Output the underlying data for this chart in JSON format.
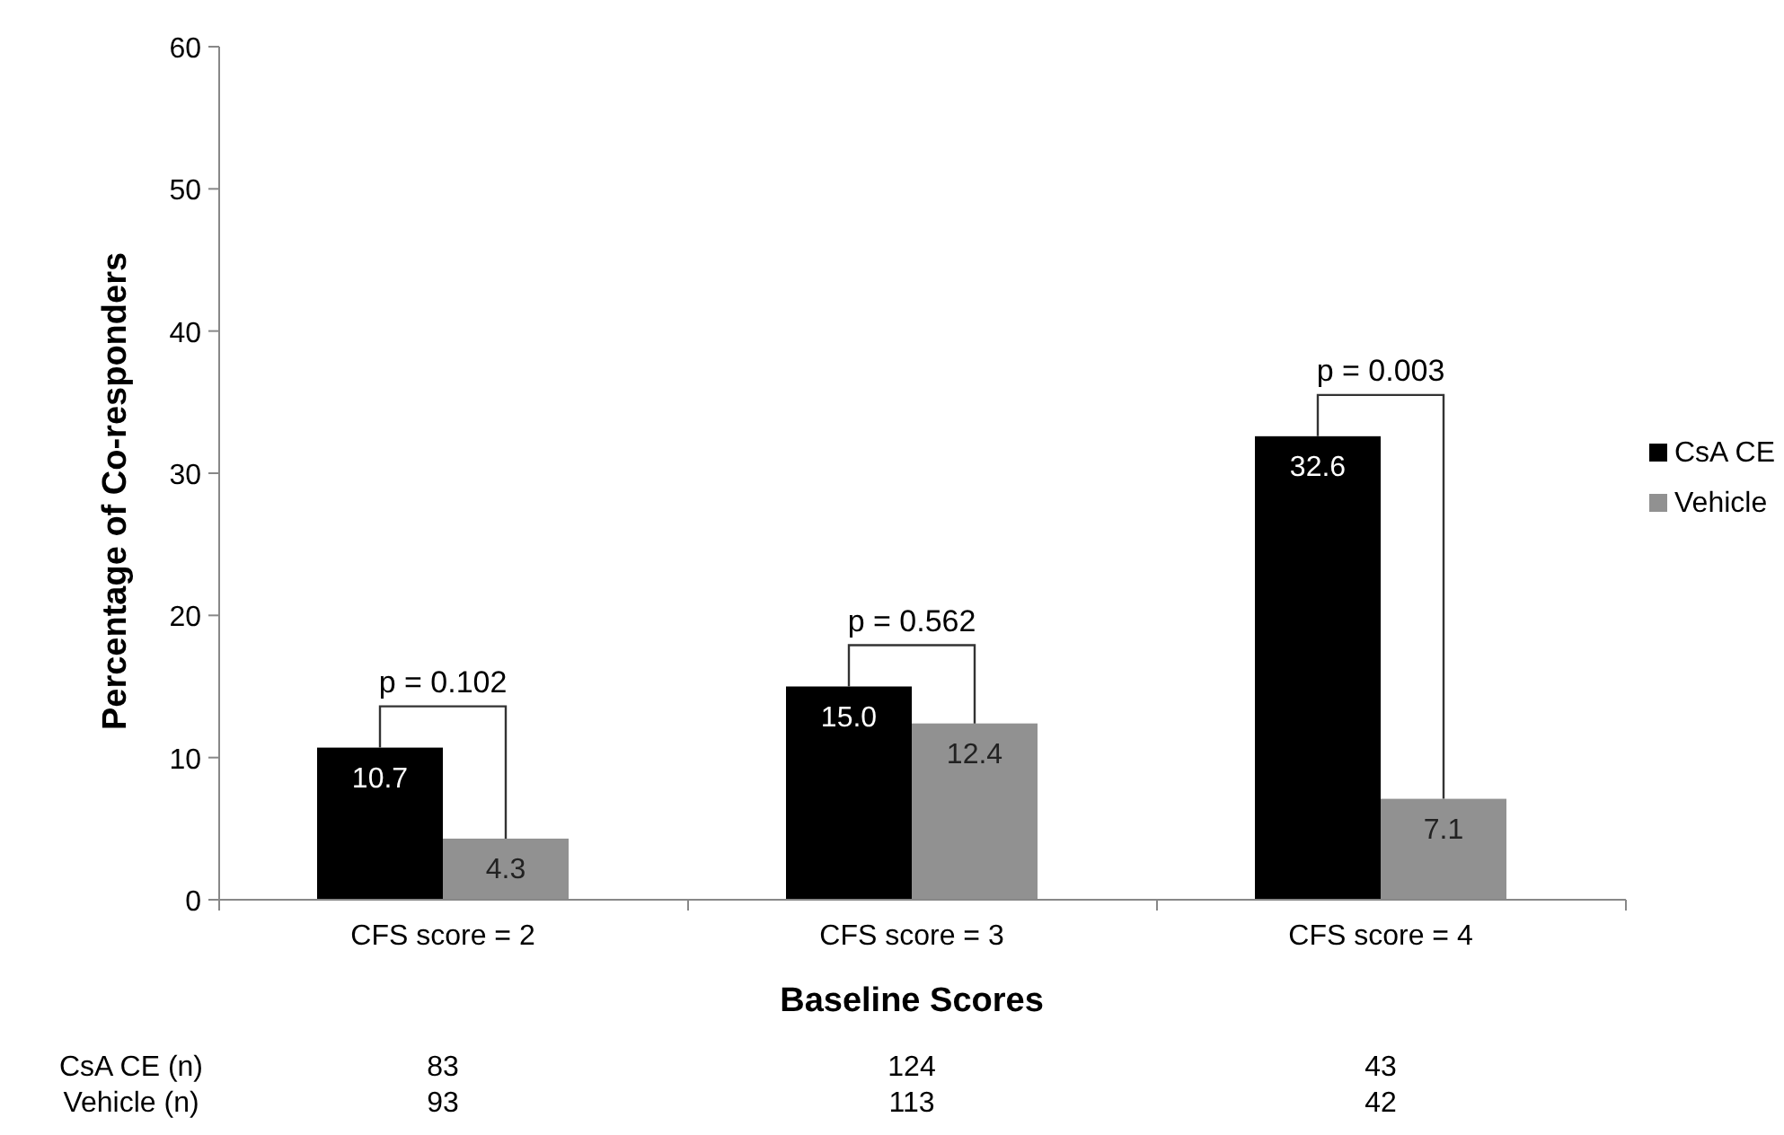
{
  "chart_data": {
    "type": "bar",
    "xlabel": "Baseline Scores",
    "ylabel": "Percentage of Co-responders",
    "categories": [
      "CFS score = 2",
      "CFS score = 3",
      "CFS score = 4"
    ],
    "series": [
      {
        "name": "CsA CE",
        "color": "#000000",
        "values": [
          10.7,
          15.0,
          32.6
        ],
        "value_labels": [
          "10.7",
          "15.0",
          "32.6"
        ]
      },
      {
        "name": "Vehicle",
        "color": "#919191",
        "values": [
          4.3,
          12.4,
          7.1
        ],
        "value_labels": [
          "4.3",
          "12.4",
          "7.1"
        ]
      }
    ],
    "ylim": [
      0,
      60
    ],
    "yticks": [
      0,
      10,
      20,
      30,
      40,
      50,
      60
    ],
    "grid": false,
    "legend": "right",
    "annotations": [
      "p = 0.102",
      "p = 0.562",
      "p = 0.003",
      "CsA CE (n)",
      "83",
      "124",
      "43",
      "Vehicle (n)",
      "93",
      "113",
      "42"
    ]
  }
}
